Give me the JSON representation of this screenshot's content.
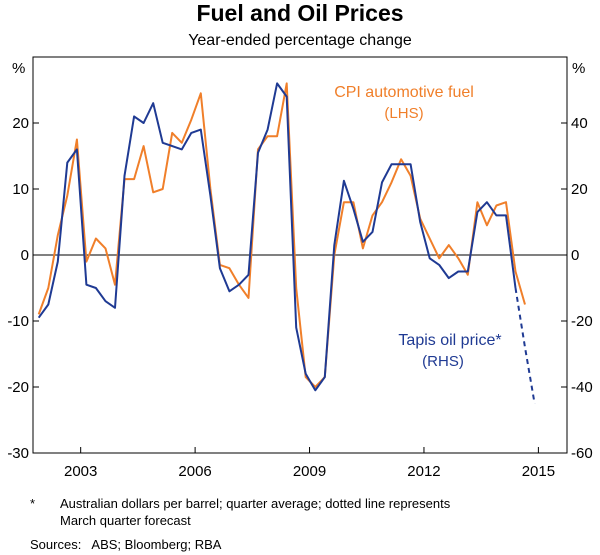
{
  "chart_data": {
    "type": "line",
    "title": "Fuel and Oil Prices",
    "subtitle": "Year-ended percentage change",
    "left_unit": "%",
    "right_unit": "%",
    "x_range": [
      2001.75,
      2015.75
    ],
    "x_ticks": [
      2003,
      2006,
      2009,
      2012,
      2015
    ],
    "x_tick_labels": [
      "2003",
      "2006",
      "2009",
      "2012",
      "2015"
    ],
    "left_axis": {
      "range": [
        -30,
        30
      ],
      "ticks": [
        -30,
        -20,
        -10,
        0,
        10,
        20
      ],
      "tick_labels": [
        "-30",
        "-20",
        "-10",
        "0",
        "10",
        "20"
      ]
    },
    "right_axis": {
      "range": [
        -60,
        60
      ],
      "ticks": [
        -60,
        -40,
        -20,
        0,
        20,
        40
      ],
      "tick_labels": [
        "-60",
        "-40",
        "-20",
        "0",
        "20",
        "40"
      ]
    },
    "series": [
      {
        "name": "CPI automotive fuel",
        "label_line1": "CPI automotive fuel",
        "label_line2": "(LHS)",
        "axis": "left",
        "color": "#f07f2a",
        "x": [
          2001.9,
          2002.15,
          2002.4,
          2002.65,
          2002.9,
          2003.15,
          2003.4,
          2003.65,
          2003.9,
          2004.15,
          2004.4,
          2004.65,
          2004.9,
          2005.15,
          2005.4,
          2005.65,
          2005.9,
          2006.15,
          2006.4,
          2006.65,
          2006.9,
          2007.15,
          2007.4,
          2007.65,
          2007.9,
          2008.15,
          2008.4,
          2008.65,
          2008.9,
          2009.15,
          2009.4,
          2009.65,
          2009.9,
          2010.15,
          2010.4,
          2010.65,
          2010.9,
          2011.15,
          2011.4,
          2011.65,
          2011.9,
          2012.15,
          2012.4,
          2012.65,
          2012.9,
          2013.15,
          2013.4,
          2013.65,
          2013.9,
          2014.15,
          2014.4,
          2014.65
        ],
        "values": [
          -9,
          -5,
          3,
          9,
          17.5,
          -1,
          2.5,
          1,
          -4.5,
          11.5,
          11.5,
          16.5,
          9.5,
          10,
          18.5,
          17,
          20.5,
          24.5,
          10,
          -1.5,
          -2,
          -4.5,
          -6.5,
          16,
          18,
          18,
          26,
          -5,
          -18.5,
          -20,
          -18.5,
          0,
          8,
          8,
          1,
          6,
          8,
          11,
          14.5,
          12,
          5.5,
          2.5,
          -0.5,
          1.5,
          -0.5,
          -3,
          8,
          4.5,
          7.5,
          8,
          -2.5,
          -7.5
        ]
      },
      {
        "name": "Tapis oil price*",
        "label_line1": "Tapis oil price*",
        "label_line2": "(RHS)",
        "axis": "right",
        "color": "#1f3a93",
        "x": [
          2001.9,
          2002.15,
          2002.4,
          2002.65,
          2002.9,
          2003.15,
          2003.4,
          2003.65,
          2003.9,
          2004.15,
          2004.4,
          2004.65,
          2004.9,
          2005.15,
          2005.4,
          2005.65,
          2005.9,
          2006.15,
          2006.4,
          2006.65,
          2006.9,
          2007.15,
          2007.4,
          2007.65,
          2007.9,
          2008.15,
          2008.4,
          2008.65,
          2008.9,
          2009.15,
          2009.4,
          2009.65,
          2009.9,
          2010.15,
          2010.4,
          2010.65,
          2010.9,
          2011.15,
          2011.4,
          2011.65,
          2011.9,
          2012.15,
          2012.4,
          2012.65,
          2012.9,
          2013.15,
          2013.4,
          2013.65,
          2013.9,
          2014.15,
          2014.4
        ],
        "values": [
          -19,
          -15,
          -2,
          28,
          32,
          -9,
          -10,
          -14,
          -16,
          24,
          42,
          40,
          46,
          34,
          33,
          32,
          37,
          38,
          18,
          -4,
          -11,
          -9,
          -6,
          31,
          38,
          52,
          48,
          -22,
          -36,
          -41,
          -37,
          3,
          22.5,
          14,
          4,
          7,
          22,
          27.5,
          27.5,
          27.5,
          10,
          -1,
          -3,
          -7,
          -5,
          -5,
          13,
          16,
          12,
          12,
          -10
        ],
        "forecast": {
          "style": "dotted",
          "x": [
            2014.4,
            2014.65,
            2014.9
          ],
          "values": [
            -10,
            -28,
            -45
          ]
        }
      }
    ],
    "footnote_marker": "*",
    "footnote_line1": "Australian dollars per barrel; quarter average; dotted line represents",
    "footnote_line2": "March quarter forecast",
    "sources": "Sources:   ABS; Bloomberg; RBA"
  }
}
